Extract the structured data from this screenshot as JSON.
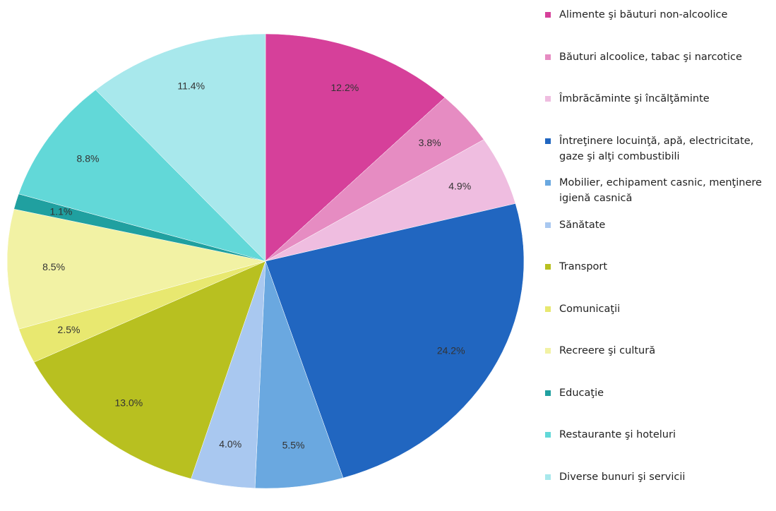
{
  "chart_data": {
    "type": "pie",
    "categories": [
      "Alimente şi băuturi non-alcoolice",
      "Băuturi alcoolice, tabac şi narcotice",
      "Îmbrăcăminte şi încălţăminte",
      "Întreţinere locuinţă, apă, electricitate, gaze şi alţi combustibili",
      "Mobilier, echipament casnic, menţinere igienă casnică",
      "Sănătate",
      "Transport",
      "Comunicaţii",
      "Recreere şi cultură",
      "Educaţie",
      "Restaurante şi hoteluri",
      "Diverse bunuri şi servicii"
    ],
    "values": [
      12.2,
      3.8,
      4.9,
      24.2,
      5.5,
      4.0,
      13.0,
      2.5,
      8.5,
      1.1,
      8.8,
      11.4
    ],
    "value_labels": [
      "12.2%",
      "3.8%",
      "4.9%",
      "24.2%",
      "5.5%",
      "4.0%",
      "13.0%",
      "2.5%",
      "8.5%",
      "1.1%",
      "8.8%",
      "11.4%"
    ],
    "colors": [
      "#d6409a",
      "#e68cc2",
      "#efbde0",
      "#2166c0",
      "#6aa8e0",
      "#a9c8f0",
      "#b8c020",
      "#e8e870",
      "#f2f2a4",
      "#20a0a0",
      "#62d8d8",
      "#a8e8ec"
    ],
    "legend": "right"
  }
}
